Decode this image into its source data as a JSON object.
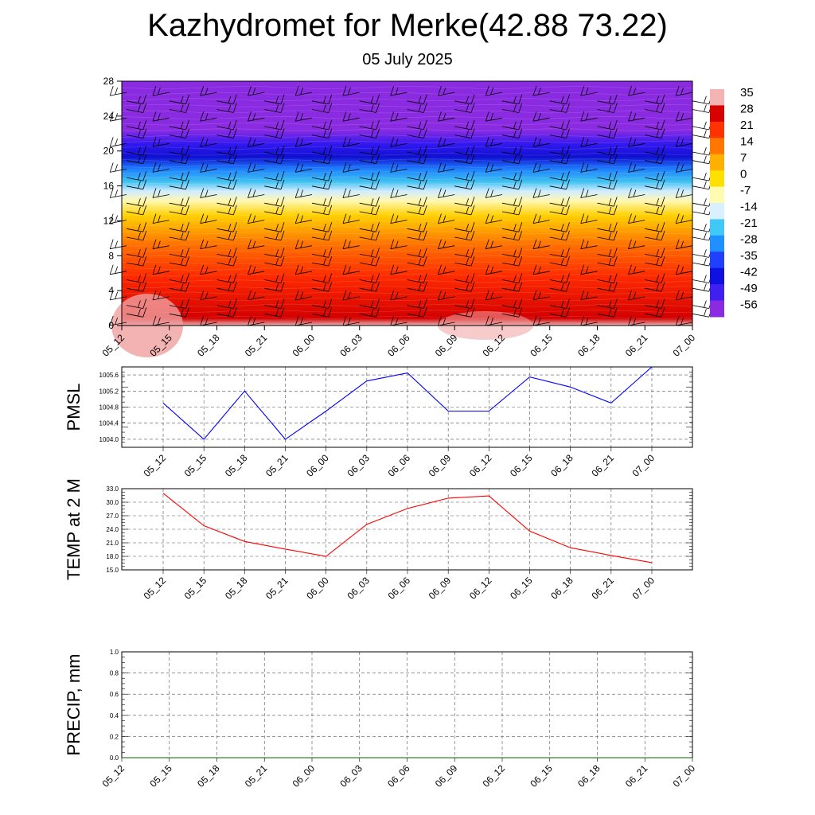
{
  "title": "Kazhydromet for Merke(42.88 73.22)",
  "subtitle": "05 July 2025",
  "chart_data": [
    {
      "type": "heatmap",
      "x_ticks": [
        "05_12",
        "05_15",
        "05_18",
        "05_21",
        "06_00",
        "06_03",
        "06_06",
        "06_09",
        "06_12",
        "06_15",
        "06_18",
        "06_21",
        "07_00"
      ],
      "y_ticks": [
        "0",
        "4",
        "8",
        "12",
        "16",
        "20",
        "24",
        "28"
      ],
      "ylim": [
        0,
        28
      ],
      "colorbar_labels": [
        "35",
        "28",
        "21",
        "14",
        "7",
        "0",
        "-7",
        "-14",
        "-21",
        "-28",
        "-35",
        "-42",
        "-49",
        "-56"
      ],
      "colors": [
        "#f4b4b4",
        "#d90000",
        "#ff3300",
        "#ff7700",
        "#ffb000",
        "#ffe000",
        "#fffcb0",
        "#d8f0ff",
        "#40c8f8",
        "#1e90ff",
        "#2040ff",
        "#1010e0",
        "#4020f0",
        "#8a2be2"
      ]
    },
    {
      "type": "line",
      "ylabel": "PMSL",
      "x": [
        "05_12",
        "05_15",
        "05_18",
        "05_21",
        "06_00",
        "06_03",
        "06_06",
        "06_09",
        "06_12",
        "06_15",
        "06_18",
        "06_21",
        "07_00"
      ],
      "series": [
        {
          "values": [
            1004.9,
            1004.0,
            1005.2,
            1004.0,
            1004.7,
            1005.45,
            1005.65,
            1004.7,
            1004.7,
            1005.55,
            1005.3,
            1004.9,
            1005.8
          ],
          "color": "#0000ff"
        }
      ],
      "y_ticks": [
        "1004.0",
        "1004.4",
        "1004.8",
        "1005.2",
        "1005.6"
      ],
      "ylim": [
        1003.8,
        1005.8
      ]
    },
    {
      "type": "line",
      "ylabel": "TEMP at 2 M",
      "x": [
        "05_12",
        "05_15",
        "05_18",
        "05_21",
        "06_00",
        "06_03",
        "06_06",
        "06_09",
        "06_12",
        "06_15",
        "06_18",
        "06_21",
        "07_00"
      ],
      "series": [
        {
          "values": [
            32.0,
            24.8,
            21.3,
            19.6,
            18.0,
            25.1,
            28.6,
            30.9,
            31.4,
            23.6,
            19.9,
            18.2,
            16.6
          ],
          "color": "#ff0000"
        }
      ],
      "y_ticks": [
        "15.0",
        "18.0",
        "21.0",
        "24.0",
        "27.0",
        "30.0",
        "33.0"
      ],
      "ylim": [
        15.0,
        33.0
      ]
    },
    {
      "type": "line",
      "ylabel": "PRECIP, mm",
      "x": [
        "05_12",
        "05_15",
        "05_18",
        "05_21",
        "06_00",
        "06_03",
        "06_06",
        "06_09",
        "06_12",
        "06_15",
        "06_18",
        "06_21",
        "07_00"
      ],
      "series": [
        {
          "values": [
            0,
            0,
            0,
            0,
            0,
            0,
            0,
            0,
            0,
            0,
            0,
            0,
            0
          ],
          "color": "#006400"
        }
      ],
      "y_ticks": [
        "0.0",
        "0.2",
        "0.4",
        "0.6",
        "0.8",
        "1.0"
      ],
      "ylim": [
        0.0,
        1.0
      ]
    }
  ]
}
